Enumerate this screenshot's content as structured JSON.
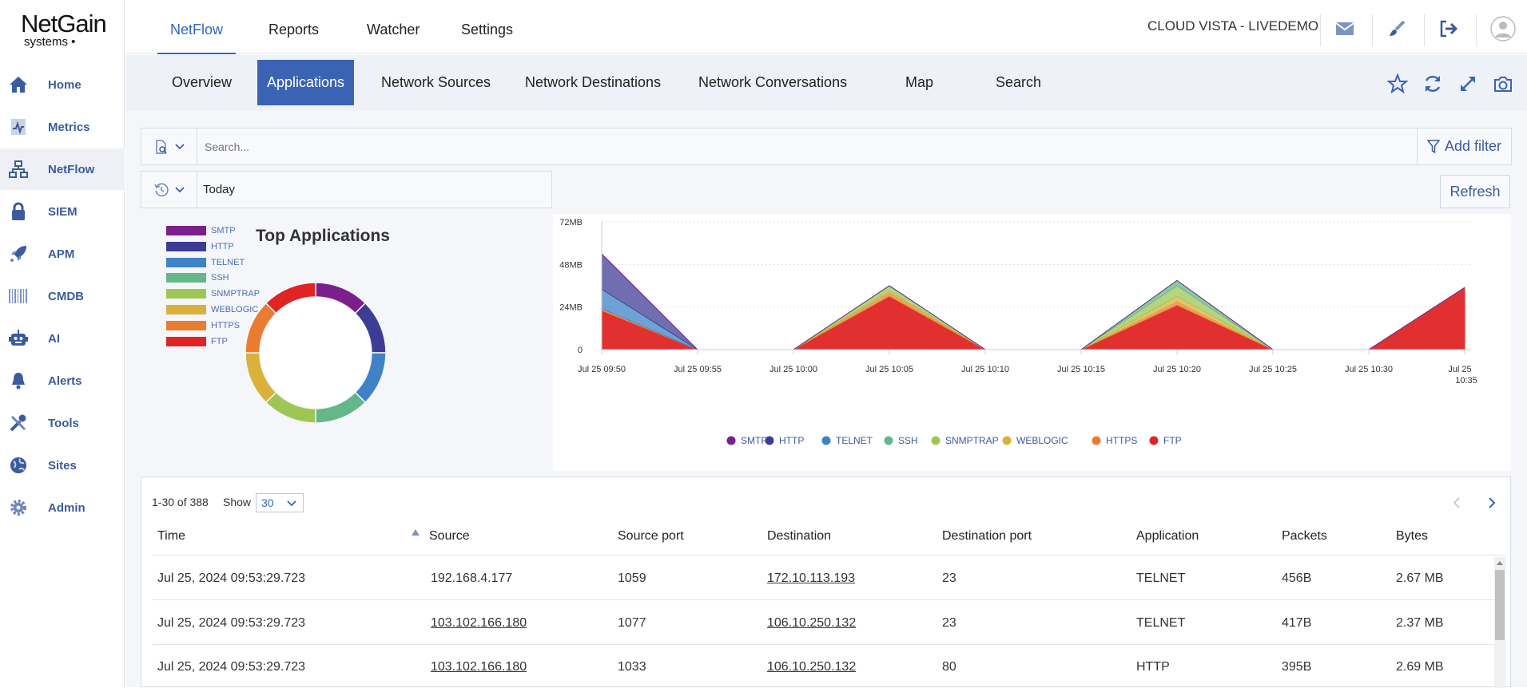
{
  "brand": {
    "line1": "NetGain",
    "line2": "systems"
  },
  "sidebar": {
    "items": [
      {
        "label": "Home",
        "icon": "home-icon"
      },
      {
        "label": "Metrics",
        "icon": "metrics-icon"
      },
      {
        "label": "NetFlow",
        "icon": "netflow-icon",
        "active": true
      },
      {
        "label": "SIEM",
        "icon": "lock-icon"
      },
      {
        "label": "APM",
        "icon": "rocket-icon"
      },
      {
        "label": "CMDB",
        "icon": "barcode-icon"
      },
      {
        "label": "AI",
        "icon": "robot-icon"
      },
      {
        "label": "Alerts",
        "icon": "bell-icon"
      },
      {
        "label": "Tools",
        "icon": "tools-icon"
      },
      {
        "label": "Sites",
        "icon": "globe-icon"
      },
      {
        "label": "Admin",
        "icon": "gear-icon"
      }
    ]
  },
  "topnav": {
    "tabs": [
      {
        "label": "NetFlow",
        "active": true
      },
      {
        "label": "Reports"
      },
      {
        "label": "Watcher"
      },
      {
        "label": "Settings"
      }
    ],
    "tenant": "CLOUD VISTA - LIVEDEMO",
    "icons": [
      "mail-icon",
      "brush-icon",
      "logout-icon",
      "user-avatar-icon"
    ]
  },
  "subnav": {
    "tabs": [
      {
        "label": "Overview"
      },
      {
        "label": "Applications",
        "active": true
      },
      {
        "label": "Network Sources"
      },
      {
        "label": "Network Destinations"
      },
      {
        "label": "Network Conversations"
      },
      {
        "label": "Map"
      },
      {
        "label": "Search"
      }
    ],
    "icons": [
      "star-icon",
      "refresh-icon",
      "expand-icon",
      "camera-icon"
    ]
  },
  "search": {
    "placeholder": "Search...",
    "add_filter": "Add filter"
  },
  "date": {
    "value": "Today"
  },
  "refresh_label": "Refresh",
  "colors": {
    "accent": "#3b63b4",
    "SMTP": "#7b1f8c",
    "HTTP": "#3e3d96",
    "TELNET": "#3f83c6",
    "SSH": "#64b789",
    "SNMPTRAP": "#9dc654",
    "WEBLOGIC": "#d9b13b",
    "HTTPS": "#ea7c31",
    "FTP": "#e02424"
  },
  "chart_data": [
    {
      "type": "pie",
      "title": "Top Applications",
      "donut": true,
      "categories": [
        "SMTP",
        "HTTP",
        "TELNET",
        "SSH",
        "SNMPTRAP",
        "WEBLOGIC",
        "HTTPS",
        "FTP"
      ],
      "values": [
        12.5,
        12.5,
        12.5,
        12.5,
        12.5,
        12.5,
        12.5,
        12.5
      ],
      "legend": "left"
    },
    {
      "type": "area",
      "stacked": true,
      "x": [
        "Jul 25 09:50",
        "Jul 25 09:55",
        "Jul 25 10:00",
        "Jul 25 10:05",
        "Jul 25 10:10",
        "Jul 25 10:15",
        "Jul 25 10:20",
        "Jul 25 10:25",
        "Jul 25 10:30",
        "Jul 25 10:35"
      ],
      "ylim": [
        0,
        72
      ],
      "yticks": [
        "0",
        "24MB",
        "48MB",
        "72MB"
      ],
      "series": [
        {
          "name": "FTP",
          "values": [
            22,
            0,
            0,
            30,
            0,
            0,
            25,
            0,
            0,
            35
          ]
        },
        {
          "name": "HTTPS",
          "values": [
            1,
            0,
            0,
            2,
            0,
            0,
            2,
            0,
            0,
            0
          ]
        },
        {
          "name": "WEBLOGIC",
          "values": [
            0,
            0,
            0,
            1,
            0,
            0,
            3,
            0,
            0,
            0
          ]
        },
        {
          "name": "SNMPTRAP",
          "values": [
            0,
            0,
            0,
            3,
            0,
            0,
            6,
            0,
            0,
            0
          ]
        },
        {
          "name": "SSH",
          "values": [
            0,
            0,
            0,
            0,
            0,
            0,
            3,
            0,
            0,
            0
          ]
        },
        {
          "name": "TELNET",
          "values": [
            11,
            0,
            0,
            0,
            0,
            0,
            0,
            0,
            0,
            0
          ]
        },
        {
          "name": "HTTP",
          "values": [
            20,
            0,
            0,
            0,
            0,
            0,
            0,
            0,
            0,
            0
          ]
        },
        {
          "name": "SMTP",
          "values": [
            0,
            0,
            0,
            0,
            0,
            0,
            0,
            0,
            0,
            0
          ]
        }
      ],
      "legend": "bottom",
      "grid": true
    }
  ],
  "legend_order": [
    "SMTP",
    "HTTP",
    "TELNET",
    "SSH",
    "SNMPTRAP",
    "WEBLOGIC",
    "HTTPS",
    "FTP"
  ],
  "table": {
    "range": "1-30 of 388",
    "show_label": "Show",
    "show_value": "30",
    "columns": [
      "Time",
      "Source",
      "Source port",
      "Destination",
      "Destination port",
      "Application",
      "Packets",
      "Bytes"
    ],
    "rows": [
      {
        "time": "Jul 25, 2024 09:53:29.723",
        "source": "192.168.4.177",
        "source_port": "1059",
        "destination": "172.10.113.193",
        "destination_port": "23",
        "application": "TELNET",
        "packets": "456B",
        "bytes": "2.67 MB"
      },
      {
        "time": "Jul 25, 2024 09:53:29.723",
        "source": "103.102.166.180",
        "source_port": "1077",
        "destination": "106.10.250.132",
        "destination_port": "23",
        "application": "TELNET",
        "packets": "417B",
        "bytes": "2.37 MB"
      },
      {
        "time": "Jul 25, 2024 09:53:29.723",
        "source": "103.102.166.180",
        "source_port": "1033",
        "destination": "106.10.250.132",
        "destination_port": "80",
        "application": "HTTP",
        "packets": "395B",
        "bytes": "2.69 MB"
      }
    ]
  }
}
